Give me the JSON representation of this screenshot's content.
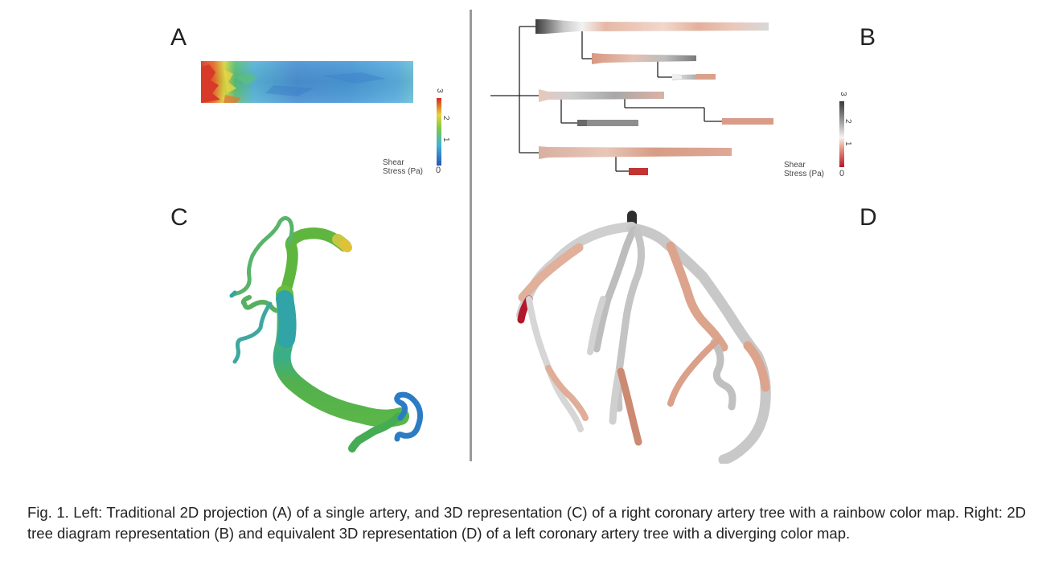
{
  "panels": {
    "a": {
      "letter": "A"
    },
    "b": {
      "letter": "B"
    },
    "c": {
      "letter": "C"
    },
    "d": {
      "letter": "D"
    }
  },
  "legend_left": {
    "title_line1": "Shear",
    "title_line2": "Stress (Pa)",
    "ticks": [
      "0",
      "1",
      "2",
      "3"
    ],
    "colormap": "rainbow",
    "colors": [
      "#2b55b8",
      "#3fb3d6",
      "#7cc84a",
      "#e8d43b",
      "#d42a1e"
    ]
  },
  "legend_right": {
    "title_line1": "Shear",
    "title_line2": "Stress (Pa)",
    "ticks": [
      "0",
      "1",
      "2",
      "3"
    ],
    "colormap": "diverging",
    "colors": [
      "#b2182b",
      "#e8a08a",
      "#f4f4f4",
      "#9a9a9a",
      "#3a3a3a"
    ]
  },
  "caption": "Fig. 1. Left: Traditional 2D projection (A) of a single artery, and 3D representation (C) of a right coronary artery tree with a rainbow color map. Right: 2D tree diagram representation (B) and equivalent 3D representation (D) of a left coronary artery tree with a diverging color map."
}
